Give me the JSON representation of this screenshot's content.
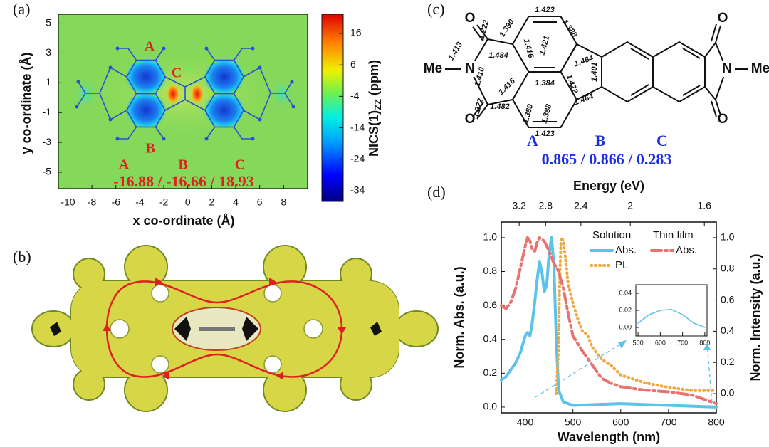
{
  "panel_a": {
    "label": "(a)",
    "xlabel": "x co-ordinate (Å)",
    "ylabel": "y co-ordinate (Å)",
    "xlim": [
      -10.8,
      10
    ],
    "ylim": [
      -6.1,
      5.6
    ],
    "xticks": [
      -10,
      -8,
      -6,
      -4,
      -2,
      0,
      2,
      4,
      6,
      8
    ],
    "yticks": [
      5,
      3,
      1,
      -1,
      -3,
      -5
    ],
    "colorbar": {
      "label": "NICS(1)",
      "label_sub": "ZZ",
      "label_unit": "(ppm)",
      "lim": [
        -37.4,
        22.1
      ],
      "ticks": [
        16,
        6,
        -4,
        -14,
        -24,
        -34
      ]
    },
    "ring_labels": [
      "A",
      "C",
      "B"
    ],
    "legend_labels": [
      "A",
      "B",
      "C"
    ],
    "nics_values": "-16.88 / -16.66 / 18.93"
  },
  "panel_b": {
    "label": "(b)"
  },
  "panel_c": {
    "label": "(c)",
    "atoms": [
      "O",
      "N",
      "Me",
      "O",
      "O",
      "N",
      "Me",
      "O"
    ],
    "bond_lengths": [
      "1.423",
      "1.390",
      "1.388",
      "1.222",
      "1.484",
      "1.416",
      "1.421",
      "1.464",
      "1.413",
      "1.401",
      "1.410",
      "1.384",
      "1.416",
      "1.422",
      "1.222",
      "1.482",
      "1.389",
      "1.388",
      "1.464",
      "1.423"
    ],
    "ring_labels": [
      "A",
      "B",
      "C"
    ],
    "ring_values": "0.865 / 0.866 / 0.283"
  },
  "panel_d": {
    "label": "(d)"
  },
  "chart_data": [
    {
      "type": "line",
      "xlabel": "Wavelength (nm)",
      "ylabel": "Norm. Abs. (a.u.)",
      "y2label": "Norm. Intensity (a.u.)",
      "x2label": "Energy (eV)",
      "xlim": [
        350,
        800
      ],
      "xticks": [
        400,
        500,
        600,
        700,
        800
      ],
      "ylim": [
        -0.034,
        1.092
      ],
      "yticks": [
        {
          "value": 0,
          "label": "0.0"
        },
        0.2,
        0.4,
        0.6,
        0.8,
        {
          "value": 1,
          "label": "1.0"
        }
      ],
      "y2lim": [
        -0.123,
        1.1
      ],
      "y2ticks": [
        {
          "value": 0,
          "label": "0.0"
        },
        0.2,
        0.4,
        0.6,
        0.8,
        {
          "value": 1,
          "label": "1.0"
        }
      ],
      "x2lim": [
        3.543,
        1.55
      ],
      "x2ticks": [
        3.2,
        2.8,
        2.4,
        2,
        1.6
      ],
      "x2scale": "reciprocal",
      "series": [
        {
          "group": "Solution",
          "name": "Abs.",
          "color": "#5bc2ea",
          "style": "solid",
          "x": [
            350,
            360,
            370,
            380,
            390,
            395,
            400,
            405,
            410,
            415,
            420,
            425,
            430,
            435,
            440,
            445,
            450,
            455,
            460,
            465,
            470,
            480,
            500,
            600,
            700,
            800
          ],
          "values": [
            0.16,
            0.18,
            0.22,
            0.26,
            0.32,
            0.37,
            0.42,
            0.44,
            0.42,
            0.5,
            0.62,
            0.75,
            0.86,
            0.8,
            0.68,
            0.72,
            0.9,
            1.0,
            0.85,
            0.4,
            0.1,
            0.03,
            0.01,
            0.02,
            0.01,
            0.0
          ]
        },
        {
          "name": "PL",
          "color": "#f0a840",
          "style": "dotted",
          "axis": "y2",
          "x": [
            465,
            470,
            472,
            475,
            480,
            485,
            490,
            500,
            510,
            520,
            530,
            540,
            560,
            580,
            600,
            650,
            700,
            750,
            800
          ],
          "values": [
            0.0,
            0.3,
            0.7,
            1.0,
            0.98,
            0.85,
            0.7,
            0.58,
            0.48,
            0.4,
            0.38,
            0.3,
            0.22,
            0.18,
            0.12,
            0.07,
            0.04,
            0.02,
            0.02
          ]
        },
        {
          "group": "Thin film",
          "name": "Abs.",
          "color": "#e8736f",
          "style": "dashdot",
          "x": [
            350,
            360,
            370,
            380,
            390,
            400,
            405,
            410,
            415,
            420,
            425,
            430,
            440,
            450,
            460,
            470,
            480,
            490,
            500,
            520,
            540,
            560,
            580,
            600,
            650,
            700,
            750,
            800
          ],
          "values": [
            0.6,
            0.58,
            0.62,
            0.7,
            0.82,
            0.95,
            1.0,
            0.98,
            0.93,
            0.92,
            0.97,
            1.0,
            0.98,
            0.92,
            0.85,
            0.8,
            0.7,
            0.55,
            0.42,
            0.33,
            0.25,
            0.17,
            0.14,
            0.12,
            0.1,
            0.09,
            0.07,
            0.02
          ]
        }
      ]
    },
    {
      "type": "line",
      "xlim": [
        490,
        810
      ],
      "xticks": [
        500,
        600,
        700,
        800
      ],
      "ylim": [
        -0.01,
        0.05
      ],
      "yticks": [
        {
          "value": 0,
          "label": "0.00"
        },
        {
          "value": 0.02,
          "label": "0.02"
        },
        {
          "value": 0.04,
          "label": "0.04"
        }
      ],
      "series": [
        {
          "color": "#5bc2ea",
          "style": "solid",
          "x": [
            500,
            550,
            600,
            650,
            700,
            750,
            800
          ],
          "values": [
            0.005,
            0.015,
            0.02,
            0.021,
            0.015,
            0.005,
            0.0
          ]
        }
      ]
    }
  ]
}
